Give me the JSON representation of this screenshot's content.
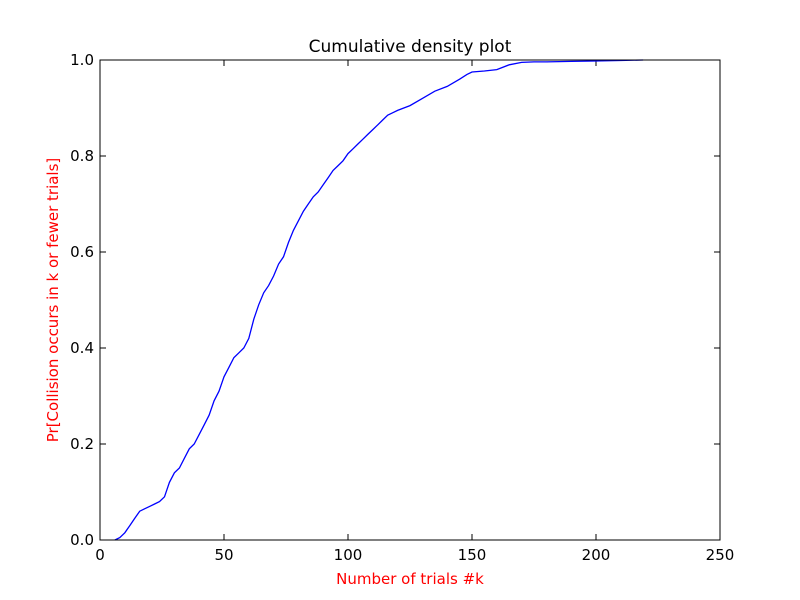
{
  "chart_data": {
    "type": "line",
    "title": "Cumulative density plot",
    "xlabel": "Number of trials #k",
    "ylabel": "Pr[Collision occurs in k or fewer trials]",
    "xlim": [
      0,
      250
    ],
    "ylim": [
      0,
      1
    ],
    "xticks": [
      0,
      50,
      100,
      150,
      200,
      250
    ],
    "yticks": [
      0.0,
      0.2,
      0.4,
      0.6,
      0.8,
      1.0
    ],
    "xtick_labels": [
      "0",
      "50",
      "100",
      "150",
      "200",
      "250"
    ],
    "ytick_labels": [
      "0.0",
      "0.2",
      "0.4",
      "0.6",
      "0.8",
      "1.0"
    ],
    "grid": false,
    "series": [
      {
        "color": "#0000ff",
        "x": [
          6,
          8,
          10,
          12,
          14,
          16,
          18,
          20,
          22,
          24,
          26,
          28,
          30,
          32,
          34,
          36,
          38,
          40,
          42,
          44,
          46,
          48,
          50,
          52,
          54,
          56,
          58,
          60,
          62,
          64,
          66,
          68,
          70,
          72,
          74,
          76,
          78,
          80,
          82,
          84,
          86,
          88,
          90,
          92,
          94,
          96,
          98,
          100,
          102,
          104,
          106,
          108,
          110,
          112,
          114,
          116,
          118,
          120,
          125,
          130,
          135,
          140,
          145,
          148,
          150,
          155,
          160,
          165,
          170,
          175,
          180,
          190,
          200,
          210,
          219
        ],
        "y": [
          0.0,
          0.005,
          0.015,
          0.03,
          0.045,
          0.06,
          0.065,
          0.07,
          0.075,
          0.08,
          0.09,
          0.12,
          0.14,
          0.15,
          0.17,
          0.19,
          0.2,
          0.22,
          0.24,
          0.26,
          0.29,
          0.31,
          0.34,
          0.36,
          0.38,
          0.39,
          0.4,
          0.42,
          0.46,
          0.49,
          0.515,
          0.53,
          0.55,
          0.575,
          0.59,
          0.62,
          0.645,
          0.665,
          0.685,
          0.7,
          0.715,
          0.725,
          0.74,
          0.755,
          0.77,
          0.78,
          0.79,
          0.805,
          0.815,
          0.825,
          0.835,
          0.845,
          0.855,
          0.865,
          0.875,
          0.885,
          0.89,
          0.895,
          0.905,
          0.92,
          0.935,
          0.945,
          0.96,
          0.97,
          0.975,
          0.977,
          0.98,
          0.99,
          0.995,
          0.996,
          0.996,
          0.997,
          0.998,
          0.999,
          1.0
        ]
      }
    ]
  },
  "colors": {
    "axis_label": "#ff0000",
    "line": "#0000ff"
  }
}
